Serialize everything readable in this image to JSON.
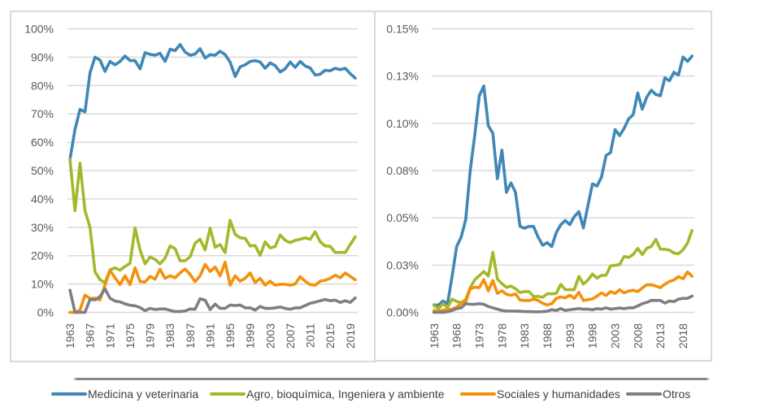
{
  "chart_data": [
    {
      "type": "line",
      "title": "",
      "xlabel": "",
      "ylabel": "",
      "ylim": [
        0,
        100
      ],
      "y_unit": "percent",
      "y_ticks": [
        0,
        10,
        20,
        30,
        40,
        50,
        60,
        70,
        80,
        90,
        100
      ],
      "y_tick_labels": [
        "0%",
        "10%",
        "20%",
        "30%",
        "40%",
        "50%",
        "60%",
        "70%",
        "80%",
        "90%",
        "100%"
      ],
      "grid": true,
      "x": [
        1963,
        1964,
        1965,
        1966,
        1967,
        1968,
        1969,
        1970,
        1971,
        1972,
        1973,
        1974,
        1975,
        1976,
        1977,
        1978,
        1979,
        1980,
        1981,
        1982,
        1983,
        1984,
        1985,
        1986,
        1987,
        1988,
        1989,
        1990,
        1991,
        1992,
        1993,
        1994,
        1995,
        1996,
        1997,
        1998,
        1999,
        2000,
        2001,
        2002,
        2003,
        2004,
        2005,
        2006,
        2007,
        2008,
        2009,
        2010,
        2011,
        2012,
        2013,
        2014,
        2015,
        2016,
        2017,
        2018,
        2019,
        2020
      ],
      "x_tick_labels": [
        "1963",
        "1967",
        "1971",
        "1975",
        "1979",
        "1983",
        "1987",
        "1991",
        "1995",
        "1999",
        "2003",
        "2007",
        "2011",
        "2015",
        "2019"
      ],
      "series": [
        {
          "name": "Medicina y veterinaria",
          "color": "#3f87b7",
          "values": [
            54.0,
            64.5,
            71.6,
            70.7,
            84.5,
            90.0,
            89.0,
            85.0,
            88.5,
            87.3,
            88.5,
            90.4,
            88.8,
            88.8,
            85.9,
            91.6,
            91.0,
            90.7,
            91.4,
            88.5,
            92.8,
            92.3,
            94.5,
            91.8,
            90.7,
            91.1,
            93.0,
            89.7,
            90.9,
            90.7,
            92.1,
            90.9,
            88.3,
            83.2,
            86.6,
            87.3,
            88.5,
            88.8,
            88.3,
            86.1,
            88.0,
            87.0,
            84.8,
            85.9,
            88.3,
            86.4,
            88.5,
            86.9,
            86.2,
            83.7,
            84.0,
            85.4,
            85.2,
            86.1,
            85.6,
            86.1,
            84.2,
            82.6
          ]
        },
        {
          "name": "Agro, bioquímica, Ingeniera y ambiente",
          "color": "#a3b92b",
          "values": [
            54.0,
            35.9,
            52.6,
            35.9,
            30.0,
            14.3,
            11.5,
            10.5,
            15.0,
            15.7,
            14.9,
            16.2,
            17.3,
            29.8,
            22.0,
            17.1,
            19.5,
            18.7,
            17.1,
            19.1,
            23.4,
            22.5,
            18.2,
            18.2,
            19.6,
            24.4,
            25.8,
            22.0,
            29.7,
            23.0,
            23.9,
            21.1,
            32.5,
            27.5,
            26.3,
            26.1,
            23.4,
            23.6,
            20.1,
            24.9,
            22.7,
            23.2,
            27.3,
            25.4,
            24.6,
            25.4,
            25.8,
            26.3,
            25.8,
            28.4,
            24.9,
            23.4,
            23.3,
            21.1,
            21.1,
            21.1,
            23.9,
            26.6
          ]
        },
        {
          "name": "Sociales y humanidades",
          "color": "#f5900a",
          "values": [
            0.0,
            0.0,
            0.8,
            6.1,
            4.9,
            5.0,
            4.4,
            9.7,
            14.8,
            12.2,
            9.8,
            12.9,
            9.8,
            15.7,
            10.9,
            10.7,
            12.7,
            11.7,
            15.2,
            12.0,
            12.9,
            12.2,
            13.9,
            15.3,
            13.4,
            10.8,
            12.9,
            16.9,
            14.4,
            16.0,
            12.9,
            17.7,
            9.6,
            12.9,
            11.0,
            12.0,
            13.9,
            10.5,
            12.0,
            9.6,
            11.0,
            9.6,
            9.9,
            9.9,
            9.6,
            10.0,
            12.6,
            11.0,
            9.8,
            9.6,
            11.0,
            11.3,
            12.0,
            13.1,
            12.2,
            13.9,
            12.7,
            11.5
          ]
        },
        {
          "name": "Otros",
          "color": "#7f7f7f",
          "values": [
            7.8,
            0.0,
            0.0,
            0.0,
            4.6,
            4.4,
            5.6,
            8.3,
            5.0,
            4.0,
            3.7,
            3.0,
            2.5,
            2.3,
            1.7,
            0.6,
            1.4,
            1.0,
            1.2,
            1.2,
            0.7,
            0.3,
            0.3,
            0.5,
            1.2,
            1.1,
            4.8,
            4.3,
            1.0,
            2.9,
            1.4,
            1.4,
            2.6,
            2.4,
            2.6,
            1.6,
            1.6,
            0.8,
            2.1,
            1.4,
            1.4,
            1.6,
            1.9,
            1.4,
            1.1,
            1.6,
            1.6,
            2.4,
            3.2,
            3.6,
            4.1,
            4.5,
            4.1,
            4.3,
            3.5,
            4.1,
            3.5,
            5.1
          ]
        }
      ]
    },
    {
      "type": "line",
      "title": "",
      "xlabel": "",
      "ylabel": "",
      "ylim": [
        0,
        0.15
      ],
      "y_unit": "percent",
      "y_ticks": [
        0,
        0.025,
        0.05,
        0.075,
        0.1,
        0.125,
        0.15
      ],
      "y_tick_labels": [
        "0.00%",
        "0.03%",
        "0.05%",
        "0.08%",
        "0.10%",
        "0.13%",
        "0.15%"
      ],
      "grid": true,
      "x": [
        1963,
        1964,
        1965,
        1966,
        1967,
        1968,
        1969,
        1970,
        1971,
        1972,
        1973,
        1974,
        1975,
        1976,
        1977,
        1978,
        1979,
        1980,
        1981,
        1982,
        1983,
        1984,
        1985,
        1986,
        1987,
        1988,
        1989,
        1990,
        1991,
        1992,
        1993,
        1994,
        1995,
        1996,
        1997,
        1998,
        1999,
        2000,
        2001,
        2002,
        2003,
        2004,
        2005,
        2006,
        2007,
        2008,
        2009,
        2010,
        2011,
        2012,
        2013,
        2014,
        2015,
        2016,
        2017,
        2018,
        2019,
        2020
      ],
      "x_tick_labels": [
        "1963",
        "1968",
        "1973",
        "1978",
        "1983",
        "1988",
        "1993",
        "1998",
        "2003",
        "2008",
        "2013",
        "2018"
      ],
      "series": [
        {
          "name": "Medicina y veterinaria",
          "color": "#3f87b7",
          "values": [
            0.0039,
            0.0039,
            0.006,
            0.0046,
            0.019,
            0.0348,
            0.0398,
            0.049,
            0.075,
            0.0937,
            0.1145,
            0.1198,
            0.0987,
            0.0948,
            0.0707,
            0.0858,
            0.0635,
            0.0685,
            0.0635,
            0.0455,
            0.0445,
            0.0455,
            0.0455,
            0.0398,
            0.0355,
            0.0369,
            0.0348,
            0.0421,
            0.0464,
            0.0486,
            0.0464,
            0.0507,
            0.0533,
            0.0447,
            0.0565,
            0.068,
            0.0668,
            0.0716,
            0.083,
            0.0845,
            0.0967,
            0.0935,
            0.0974,
            0.1024,
            0.1046,
            0.1161,
            0.1075,
            0.1139,
            0.1175,
            0.1153,
            0.1146,
            0.1241,
            0.1225,
            0.127,
            0.1256,
            0.1351,
            0.1328,
            0.1356
          ]
        },
        {
          "name": "Agro, bioquímica, Ingeniera y ambiente",
          "color": "#a3b92b",
          "values": [
            0.0036,
            0.002,
            0.0046,
            0.0026,
            0.007,
            0.0058,
            0.0051,
            0.0068,
            0.013,
            0.0172,
            0.0194,
            0.0216,
            0.0192,
            0.0318,
            0.0176,
            0.0152,
            0.0132,
            0.0139,
            0.0125,
            0.0105,
            0.011,
            0.011,
            0.0084,
            0.0084,
            0.008,
            0.0098,
            0.0098,
            0.01,
            0.0148,
            0.012,
            0.012,
            0.012,
            0.0191,
            0.0149,
            0.0171,
            0.0203,
            0.0181,
            0.0196,
            0.0196,
            0.0246,
            0.0249,
            0.0253,
            0.0296,
            0.0291,
            0.0306,
            0.0339,
            0.0306,
            0.0339,
            0.0349,
            0.0386,
            0.0334,
            0.0334,
            0.0329,
            0.0314,
            0.031,
            0.0331,
            0.0367,
            0.0434
          ]
        },
        {
          "name": "Sociales y humanidades",
          "color": "#f5900a",
          "values": [
            0.001,
            0.0006,
            0.0012,
            0.0015,
            0.0017,
            0.0028,
            0.0047,
            0.0056,
            0.0124,
            0.0133,
            0.0131,
            0.0173,
            0.0114,
            0.0168,
            0.01,
            0.0114,
            0.0096,
            0.009,
            0.0098,
            0.0065,
            0.0063,
            0.0062,
            0.007,
            0.0063,
            0.0048,
            0.0039,
            0.0046,
            0.0074,
            0.0081,
            0.0077,
            0.0091,
            0.0074,
            0.0106,
            0.0063,
            0.0067,
            0.0071,
            0.0086,
            0.0103,
            0.0089,
            0.011,
            0.01,
            0.012,
            0.0103,
            0.0113,
            0.0117,
            0.011,
            0.0129,
            0.0146,
            0.0146,
            0.0139,
            0.0131,
            0.0149,
            0.0163,
            0.0171,
            0.0189,
            0.0177,
            0.0214,
            0.0191
          ]
        },
        {
          "name": "Otros",
          "color": "#7f7f7f",
          "values": [
            0.0,
            0.0,
            0.0,
            0.0003,
            0.001,
            0.002,
            0.0024,
            0.0046,
            0.0043,
            0.0043,
            0.0046,
            0.0043,
            0.0031,
            0.0024,
            0.0017,
            0.001,
            0.0007,
            0.0007,
            0.0007,
            0.0006,
            0.0004,
            0.0004,
            0.0003,
            0.0003,
            0.0004,
            0.0006,
            0.0014,
            0.001,
            0.002,
            0.001,
            0.0014,
            0.0017,
            0.002,
            0.0017,
            0.0017,
            0.0014,
            0.002,
            0.0017,
            0.0024,
            0.0017,
            0.002,
            0.0023,
            0.002,
            0.0024,
            0.0024,
            0.0034,
            0.0046,
            0.0053,
            0.0063,
            0.0063,
            0.0063,
            0.0049,
            0.006,
            0.0057,
            0.007,
            0.0074,
            0.0074,
            0.0086
          ]
        }
      ]
    }
  ],
  "legend": {
    "placement": "bottom",
    "items": [
      {
        "label": "Medicina y veterinaria",
        "color": "#3f87b7"
      },
      {
        "label": "Agro, bioquímica, Ingeniera y ambiente",
        "color": "#a3b92b"
      },
      {
        "label": "Sociales y humanidades",
        "color": "#f5900a"
      },
      {
        "label": "Otros",
        "color": "#7f7f7f"
      }
    ]
  }
}
